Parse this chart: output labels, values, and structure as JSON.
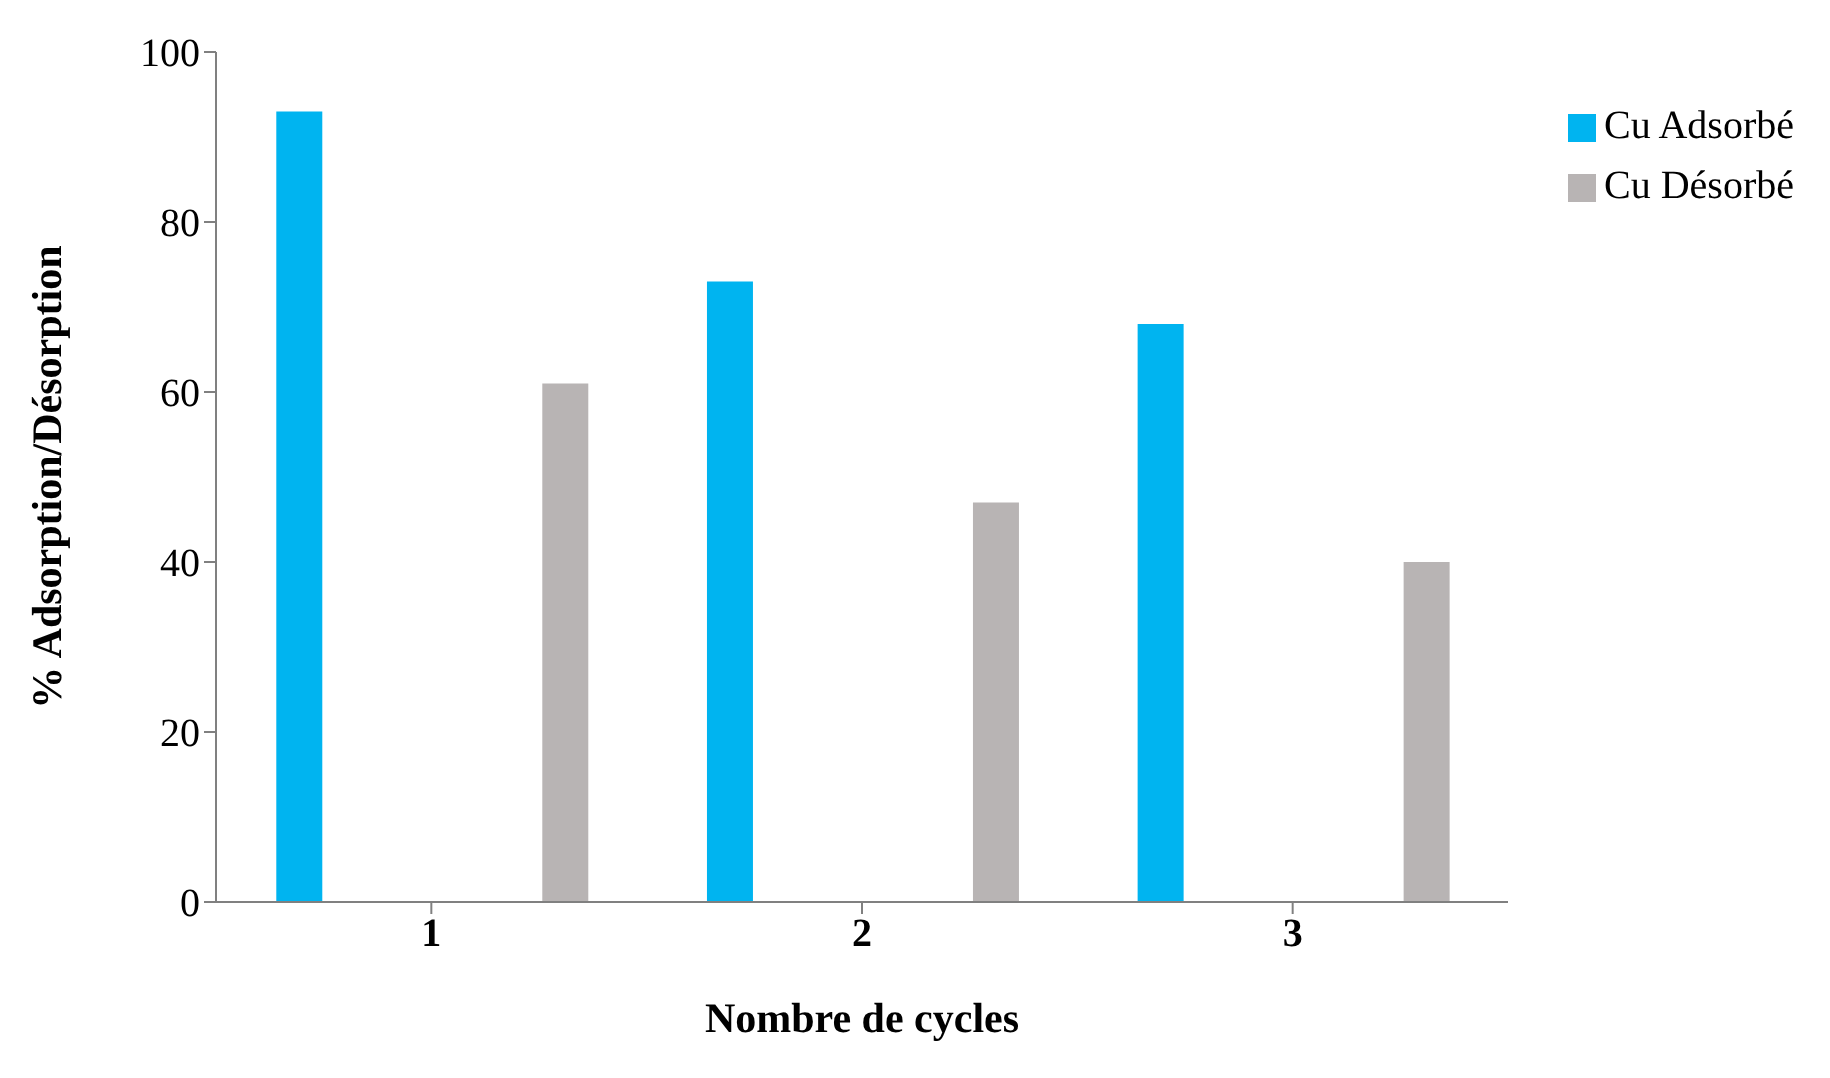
{
  "chart_data": {
    "type": "bar",
    "xlabel": "Nombre de cycles",
    "ylabel": "% Adsorption/Désorption",
    "categories": [
      "1",
      "2",
      "3"
    ],
    "series": [
      {
        "name": "Cu Adsorbé",
        "color": "#00b4f0",
        "values": [
          93,
          73,
          68
        ]
      },
      {
        "name": "Cu Désorbé",
        "color": "#b8b4b4",
        "values": [
          61,
          47,
          40
        ]
      }
    ],
    "ylim": [
      0,
      100
    ],
    "yticks": [
      0,
      20,
      40,
      60,
      80,
      100
    ],
    "grid": false,
    "legend": "top right"
  }
}
